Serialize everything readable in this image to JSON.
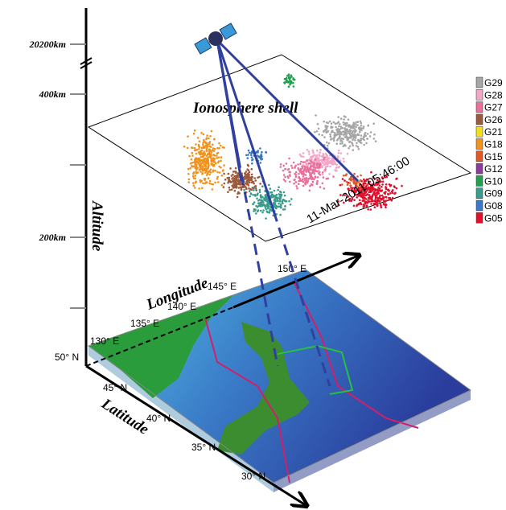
{
  "altitude_axis": {
    "label": "Altitude",
    "ticks": [
      "20200km",
      "400km",
      "200km"
    ]
  },
  "ionosphere": {
    "label": "Ionosphere shell",
    "timestamp": "11-Mar-2011 05:46:00"
  },
  "map": {
    "longitude_label": "Longitude",
    "latitude_label": "Latitude",
    "longitude_ticks": [
      "130° E",
      "135° E",
      "140° E",
      "145° E",
      "150° E"
    ],
    "latitude_ticks": [
      "50° N",
      "45° N",
      "40° N",
      "35° N",
      "30° N"
    ]
  },
  "legend": [
    {
      "label": "G29",
      "color": "#a6a6a6"
    },
    {
      "label": "G28",
      "color": "#f4a6c8"
    },
    {
      "label": "G27",
      "color": "#e8709a"
    },
    {
      "label": "G26",
      "color": "#9c5a3c"
    },
    {
      "label": "G21",
      "color": "#f2e020"
    },
    {
      "label": "G18",
      "color": "#f0921e"
    },
    {
      "label": "G15",
      "color": "#e05a28"
    },
    {
      "label": "G12",
      "color": "#8c3c9c"
    },
    {
      "label": "G10",
      "color": "#20a050"
    },
    {
      "label": "G09",
      "color": "#3a9c8c"
    },
    {
      "label": "G08",
      "color": "#3a78c8"
    },
    {
      "label": "G05",
      "color": "#e0102c"
    }
  ]
}
